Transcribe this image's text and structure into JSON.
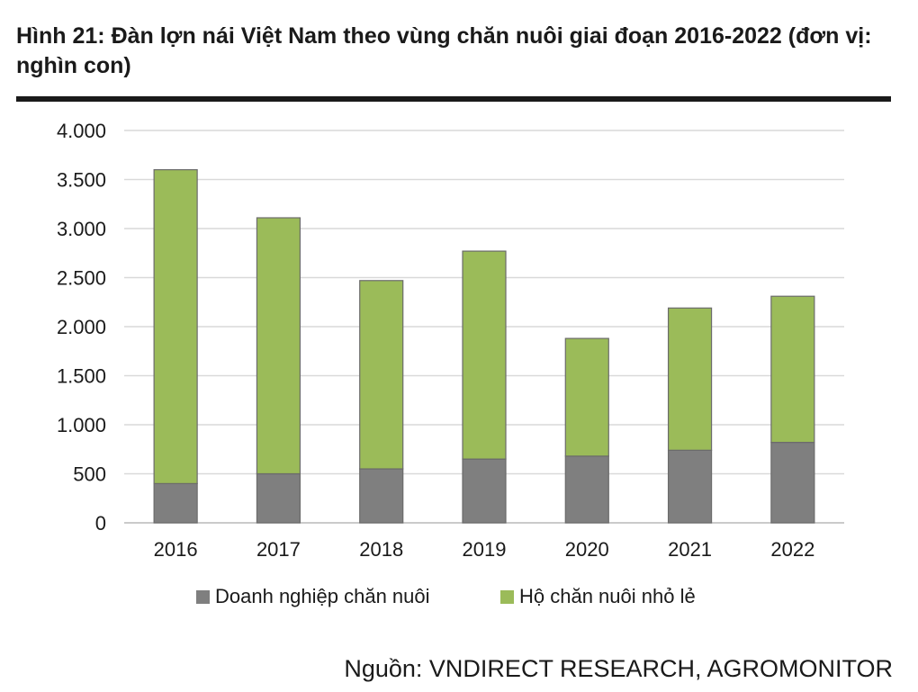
{
  "figure": {
    "title": "Hình 21: Đàn lợn nái Việt Nam theo vùng chăn nuôi giai đoạn 2016-2022 (đơn vị: nghìn con)",
    "source": "Nguồn: VNDIRECT RESEARCH, AGROMONITOR"
  },
  "chart_data": {
    "type": "bar",
    "stacked": true,
    "title": "",
    "xlabel": "",
    "ylabel": "",
    "ylim": [
      0,
      4000
    ],
    "yticks": [
      0,
      500,
      1000,
      1500,
      2000,
      2500,
      3000,
      3500,
      4000
    ],
    "ytick_labels": [
      "0",
      "500",
      "1.000",
      "1.500",
      "2.000",
      "2.500",
      "3.000",
      "3.500",
      "4.000"
    ],
    "grid": true,
    "legend_position": "bottom",
    "categories": [
      "2016",
      "2017",
      "2018",
      "2019",
      "2020",
      "2021",
      "2022"
    ],
    "series": [
      {
        "name": "Doanh nghiệp chăn nuôi",
        "color": "#7f7f7f",
        "values": [
          400,
          500,
          550,
          650,
          680,
          740,
          820
        ]
      },
      {
        "name": "Hộ chăn nuôi nhỏ lẻ",
        "color": "#9bbb59",
        "values": [
          3200,
          2610,
          1920,
          2120,
          1200,
          1450,
          1490
        ]
      }
    ]
  }
}
